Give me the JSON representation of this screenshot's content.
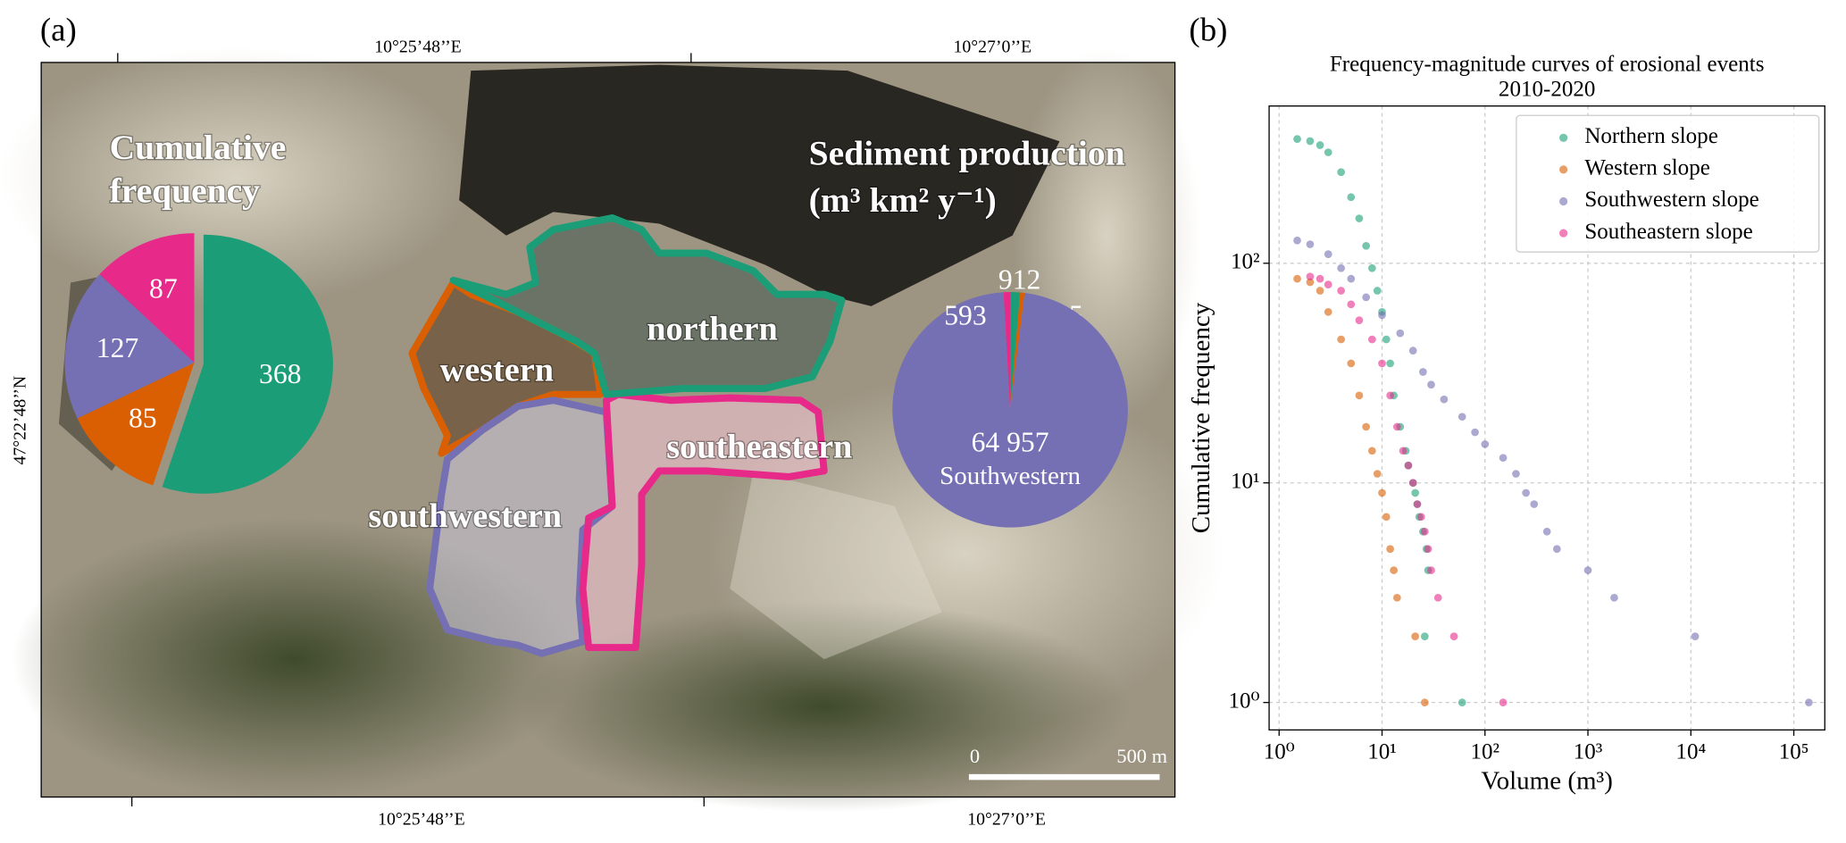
{
  "panel_labels": [
    "(a)",
    "(b)"
  ],
  "map": {
    "top_ticks": [
      "10°25’48’’E",
      "10°27’0’’E"
    ],
    "bottom_ticks": [
      "10°25’48’’E",
      "10°27’0’’E"
    ],
    "left_tick": "47°22’48’’N",
    "regions": [
      "northern",
      "western",
      "southeastern",
      "southwestern"
    ],
    "scale_bar": [
      "0",
      "500 m"
    ]
  },
  "chart_data": [
    {
      "type": "pie",
      "title": [
        "Cumulative",
        "frequency"
      ],
      "values": [
        368,
        85,
        127,
        87
      ],
      "colors": [
        "#1b9e77",
        "#d95f02",
        "#7570b3",
        "#e7298a"
      ]
    },
    {
      "type": "pie",
      "title": [
        "Sediment production",
        "(m³ km² y⁻¹)"
      ],
      "categories": [
        null,
        null,
        "Southwestern",
        null
      ],
      "values": [
        912,
        405,
        64957,
        593
      ],
      "value_labels": [
        "912",
        "405",
        "64 957",
        "593"
      ],
      "colors": [
        "#1b9e77",
        "#d95f02",
        "#7570b3",
        "#e7298a"
      ]
    },
    {
      "type": "scatter",
      "title": [
        "Frequency-magnitude curves of erosional events",
        "2010-2020"
      ],
      "xlabel": "Volume (m³)",
      "ylabel": "Cumulative frequency",
      "xlog": true,
      "ylog": true,
      "grid": true,
      "legend": "upper right",
      "xlim": [
        0.8,
        200000
      ],
      "ylim": [
        0.75,
        520
      ],
      "xticks": [
        {
          "value": 1,
          "label": "10⁰"
        },
        {
          "value": 10,
          "label": "10¹"
        },
        {
          "value": 100,
          "label": "10²"
        },
        {
          "value": 1000,
          "label": "10³"
        },
        {
          "value": 10000,
          "label": "10⁴"
        },
        {
          "value": 100000,
          "label": "10⁵"
        }
      ],
      "yticks": [
        {
          "value": 1,
          "label": "10⁰"
        },
        {
          "value": 10,
          "label": "10¹"
        },
        {
          "value": 100,
          "label": "10²"
        }
      ],
      "series": [
        {
          "name": "Northern slope",
          "color": "#1b9e77",
          "x": [
            1.5,
            2,
            2.5,
            3,
            4,
            5,
            6,
            7,
            8,
            9,
            10,
            11,
            12,
            13,
            15,
            17,
            18,
            20,
            21,
            22,
            23,
            25,
            27,
            28,
            26,
            60
          ],
          "values": [
            368,
            360,
            345,
            320,
            260,
            200,
            160,
            120,
            95,
            75,
            60,
            45,
            35,
            25,
            18,
            14,
            12,
            10,
            9,
            8,
            7,
            6,
            5,
            4,
            2,
            1
          ]
        },
        {
          "name": "Western slope",
          "color": "#d95f02",
          "x": [
            1.5,
            2,
            2.5,
            3,
            4,
            5,
            6,
            7,
            8,
            9,
            10,
            11,
            12,
            13,
            14,
            21,
            26
          ],
          "values": [
            85,
            82,
            75,
            60,
            45,
            35,
            25,
            18,
            14,
            11,
            9,
            7,
            5,
            4,
            3,
            2,
            1
          ]
        },
        {
          "name": "Southwestern slope",
          "color": "#7570b3",
          "x": [
            1.5,
            2,
            3,
            4,
            5,
            7,
            10,
            15,
            20,
            25,
            30,
            40,
            60,
            80,
            100,
            150,
            200,
            250,
            300,
            400,
            500,
            1000,
            1800,
            11000,
            140000
          ],
          "values": [
            127,
            122,
            110,
            95,
            85,
            70,
            58,
            48,
            40,
            32,
            28,
            24,
            20,
            17,
            15,
            13,
            11,
            9,
            8,
            6,
            5,
            4,
            3,
            2,
            1
          ]
        },
        {
          "name": "Southeastern slope",
          "color": "#e7298a",
          "x": [
            2,
            2.5,
            3,
            4,
            5,
            6,
            8,
            10,
            12,
            14,
            16,
            18,
            20,
            22,
            24,
            26,
            28,
            30,
            35,
            50,
            150
          ],
          "values": [
            87,
            85,
            80,
            75,
            65,
            55,
            45,
            35,
            25,
            18,
            14,
            12,
            10,
            8,
            7,
            6,
            5,
            4,
            3,
            2,
            1
          ]
        }
      ]
    }
  ]
}
